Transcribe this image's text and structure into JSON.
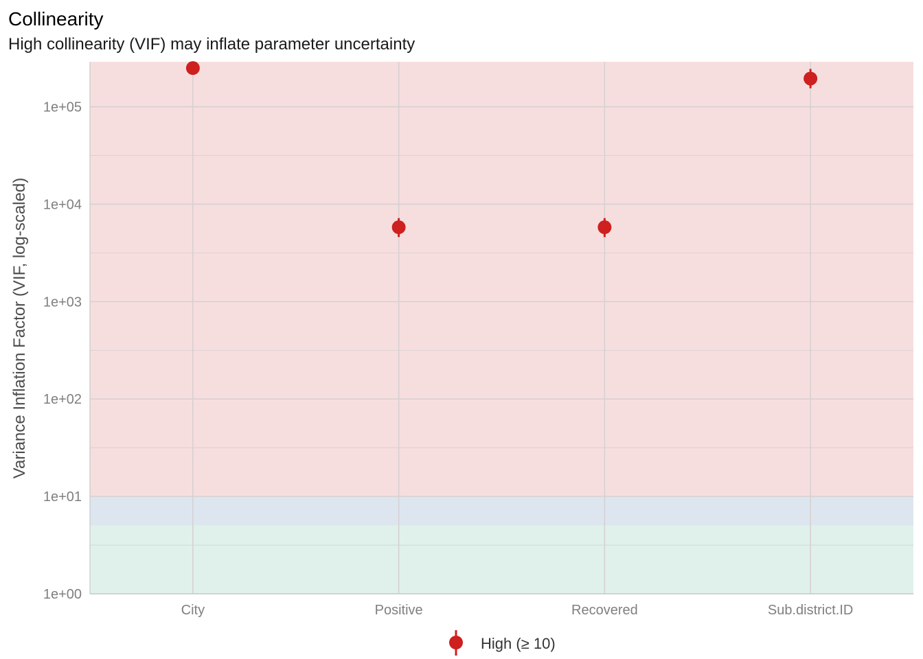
{
  "chart_data": {
    "type": "scatter",
    "title": "Collinearity",
    "subtitle": "High collinearity (VIF) may inflate parameter uncertainty",
    "xlabel": "",
    "ylabel": "Variance Inflation Factor (VIF, log-scaled)",
    "y_scale": "log10",
    "ylim": [
      1,
      290000
    ],
    "y_ticks": [
      1,
      10,
      100,
      1000,
      10000,
      100000
    ],
    "y_tick_labels": [
      "1e+00",
      "1e+01",
      "1e+02",
      "1e+03",
      "1e+04",
      "1e+05"
    ],
    "categories": [
      "City",
      "Positive",
      "Recovered",
      "Sub.district.ID"
    ],
    "points": [
      {
        "category": "City",
        "vif": 250000,
        "ci_low": 215000,
        "ci_high": 290000
      },
      {
        "category": "Positive",
        "vif": 5800,
        "ci_low": 4600,
        "ci_high": 7200
      },
      {
        "category": "Recovered",
        "vif": 5800,
        "ci_low": 4600,
        "ci_high": 7200
      },
      {
        "category": "Sub.district.ID",
        "vif": 195000,
        "ci_low": 155000,
        "ci_high": 245000
      }
    ],
    "zones": [
      {
        "name": "low",
        "from": 1,
        "to": 5,
        "color": "#e0f1ec"
      },
      {
        "name": "moderate",
        "from": 5,
        "to": 10,
        "color": "#dde6ef"
      },
      {
        "name": "high",
        "from": 10,
        "to": 290000,
        "color": "#f7dede"
      }
    ],
    "point_color": "#cd201f",
    "grid": true,
    "legend": {
      "position": "bottom",
      "entries": [
        "High (≥ 10)"
      ]
    }
  }
}
